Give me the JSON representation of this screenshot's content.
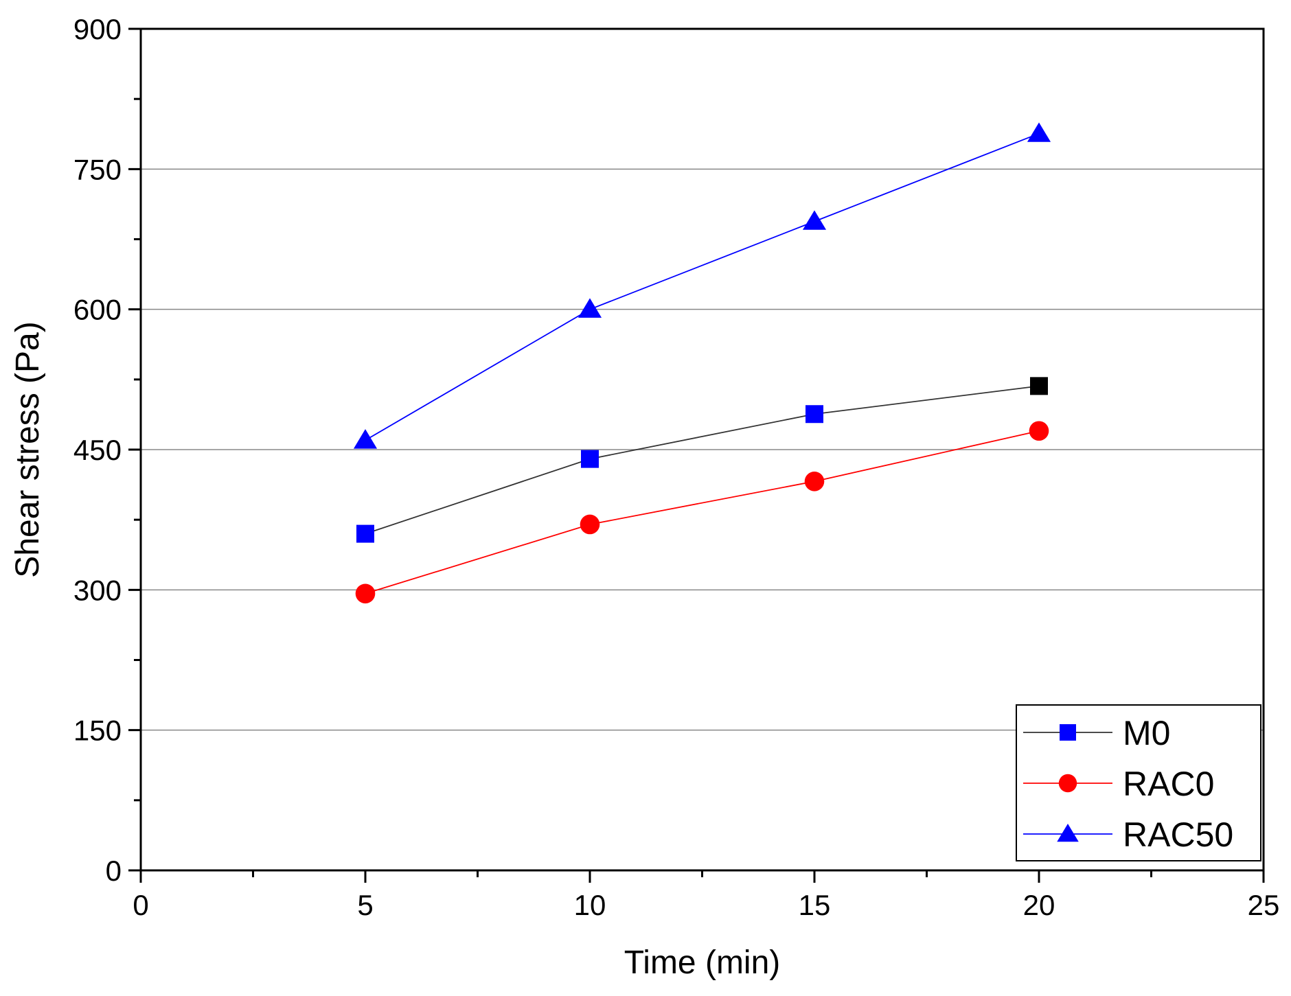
{
  "colors": {
    "axis": "#000000",
    "grid": "#888888",
    "m0_line": "#333333",
    "m0_marker": "#0000ff",
    "m0_last_marker": "#000000",
    "rac0": "#ff0000",
    "rac50": "#0000ff"
  },
  "chart_data": {
    "type": "line",
    "title": "",
    "xlabel": "Time (min)",
    "ylabel": "Shear stress (Pa)",
    "xlim": [
      0,
      25
    ],
    "ylim": [
      0,
      900
    ],
    "xticks": [
      0,
      5,
      10,
      15,
      20,
      25
    ],
    "yticks": [
      0,
      150,
      300,
      450,
      600,
      750,
      900
    ],
    "grid": "horizontal",
    "legend_position": "bottom-right",
    "x": [
      5,
      10,
      15,
      20
    ],
    "series": [
      {
        "name": "M0",
        "marker": "square",
        "values": [
          360,
          440,
          488,
          518
        ]
      },
      {
        "name": "RAC0",
        "marker": "circle",
        "values": [
          296,
          370,
          416,
          470
        ]
      },
      {
        "name": "RAC50",
        "marker": "triangle",
        "values": [
          460,
          600,
          694,
          788
        ]
      }
    ]
  }
}
